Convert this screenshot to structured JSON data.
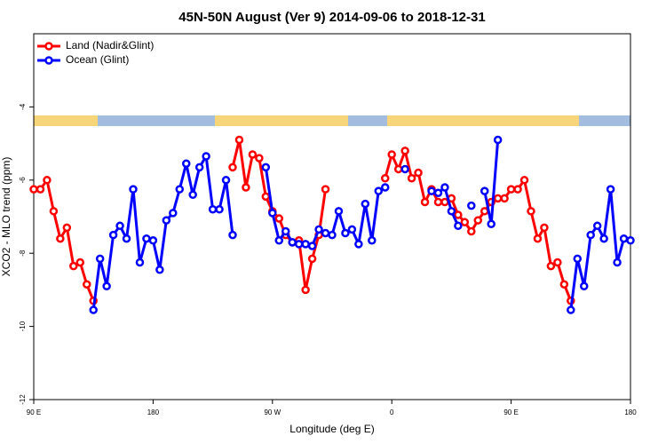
{
  "chart_data": {
    "type": "line",
    "title": "45N-50N August (Ver 9)   2014-09-06 to 2018-12-31",
    "x_label": "Longitude (deg E)",
    "y_label": "XCO2 - MLO trend (ppm)",
    "xlim": [
      90,
      540
    ],
    "ylim": [
      -12,
      -2
    ],
    "xticks": [
      {
        "value": 90,
        "label": "90 E"
      },
      {
        "value": 180,
        "label": "180"
      },
      {
        "value": 270,
        "label": "90 W"
      },
      {
        "value": 360,
        "label": "0"
      },
      {
        "value": 450,
        "label": "90 E"
      },
      {
        "value": 540,
        "label": "180"
      }
    ],
    "yticks": [
      -12,
      -10,
      -8,
      -6,
      -4
    ],
    "legend": "upper left",
    "x": [
      90,
      95,
      100,
      105,
      110,
      115,
      120,
      125,
      130,
      135,
      140,
      145,
      150,
      155,
      160,
      165,
      170,
      175,
      180,
      185,
      190,
      195,
      200,
      205,
      210,
      215,
      220,
      225,
      230,
      235,
      240,
      245,
      250,
      255,
      260,
      265,
      270,
      275,
      280,
      285,
      290,
      295,
      300,
      305,
      310,
      315,
      320,
      325,
      330,
      335,
      340,
      345,
      350,
      355,
      360,
      365,
      370,
      375,
      380,
      385,
      390,
      395,
      400,
      405,
      410,
      415,
      420,
      425,
      430,
      435,
      440,
      445,
      450,
      455,
      460,
      465,
      470,
      475,
      480,
      485,
      490,
      495,
      500,
      505,
      510,
      515,
      520,
      525,
      530,
      535,
      540
    ],
    "series": [
      {
        "name": "Land (Nadir&Glint)",
        "color": "#ff0000",
        "values": [
          -6.25,
          -6.25,
          -6.0,
          -6.85,
          -7.6,
          -7.3,
          -8.35,
          -8.25,
          -8.85,
          -9.3,
          null,
          null,
          null,
          null,
          null,
          null,
          null,
          null,
          null,
          null,
          null,
          null,
          null,
          null,
          null,
          null,
          null,
          null,
          null,
          null,
          -5.65,
          -4.9,
          -6.2,
          -5.3,
          -5.4,
          -6.45,
          -6.85,
          -7.05,
          -7.5,
          -7.7,
          -7.65,
          -9.0,
          -8.15,
          -7.5,
          -6.25,
          null,
          null,
          null,
          null,
          null,
          null,
          null,
          null,
          -5.95,
          -5.3,
          -5.7,
          -5.2,
          -5.95,
          -5.8,
          -6.6,
          -6.25,
          -6.6,
          -6.6,
          -6.5,
          -6.95,
          -7.15,
          -7.4,
          -7.1,
          -6.85,
          -6.6,
          -6.5,
          -6.5,
          -6.25,
          -6.25,
          -6.0,
          -6.85,
          -7.6,
          -7.3,
          -8.35,
          -8.25,
          -8.85,
          -9.3,
          null,
          null,
          null,
          null,
          null,
          null,
          null,
          null,
          null
        ]
      },
      {
        "name": "Ocean (Glint)",
        "color": "#0000ff",
        "values": [
          null,
          null,
          null,
          null,
          null,
          null,
          null,
          null,
          null,
          -9.55,
          -8.15,
          -8.9,
          -7.5,
          -7.25,
          -7.6,
          -6.25,
          -8.25,
          -7.6,
          -7.65,
          -8.45,
          -7.1,
          -6.9,
          -6.25,
          -5.55,
          -6.4,
          -5.65,
          -5.35,
          -6.8,
          -6.8,
          -6.0,
          -7.5,
          null,
          null,
          null,
          null,
          -5.65,
          -6.9,
          -7.65,
          -7.4,
          -7.7,
          -7.75,
          -7.75,
          -7.8,
          -7.35,
          -7.45,
          -7.5,
          -6.85,
          -7.45,
          -7.35,
          -7.75,
          -6.65,
          -7.65,
          -6.3,
          -6.2,
          null,
          null,
          -5.7,
          null,
          null,
          null,
          -6.3,
          -6.35,
          -6.2,
          -6.85,
          -7.25,
          null,
          -6.7,
          null,
          -6.3,
          -7.2,
          -4.9,
          null,
          null,
          null,
          null,
          null,
          null,
          null,
          null,
          null,
          null,
          -9.55,
          -8.15,
          -8.9,
          -7.5,
          -7.25,
          -7.6,
          -6.25,
          -8.25,
          -7.6,
          -7.65
        ]
      }
    ]
  }
}
